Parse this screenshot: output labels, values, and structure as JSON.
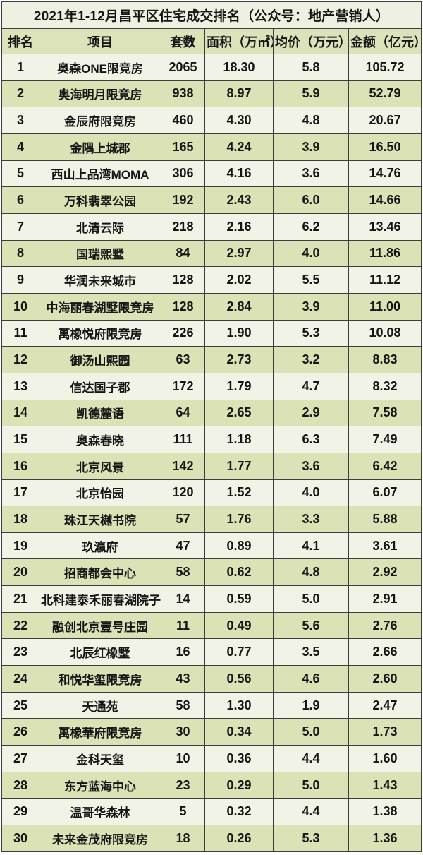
{
  "page": {
    "title": "2021年1-12月昌平区住宅成交排名（公众号：地产营销人）"
  },
  "colors": {
    "row_light": "#f0f3e6",
    "row_green": "#dae2b6",
    "header_bg": "#dce3ba",
    "title_bg": "#eef1e2",
    "border": "#3d3d3d",
    "text": "#151515",
    "page_bg": "#ffffff"
  },
  "table": {
    "headers": [
      "排名",
      "项目",
      "套数",
      "面积（万㎡）",
      "均价（万元）",
      "金额（亿元）"
    ],
    "rows": [
      [
        "1",
        "奥森ONE限竞房",
        "2065",
        "18.30",
        "5.8",
        "105.72"
      ],
      [
        "2",
        "奥海明月限竞房",
        "938",
        "8.97",
        "5.9",
        "52.79"
      ],
      [
        "3",
        "金辰府限竞房",
        "460",
        "4.30",
        "4.8",
        "20.67"
      ],
      [
        "4",
        "金隅上城郡",
        "165",
        "4.24",
        "3.9",
        "16.50"
      ],
      [
        "5",
        "西山上品湾MOMA",
        "306",
        "4.16",
        "3.6",
        "14.76"
      ],
      [
        "6",
        "万科翡翠公园",
        "192",
        "2.43",
        "6.0",
        "14.66"
      ],
      [
        "7",
        "北清云际",
        "218",
        "2.16",
        "6.2",
        "13.46"
      ],
      [
        "8",
        "国瑞熙墅",
        "84",
        "2.97",
        "4.0",
        "11.86"
      ],
      [
        "9",
        "华润未来城市",
        "128",
        "2.02",
        "5.5",
        "11.12"
      ],
      [
        "10",
        "中海丽春湖墅限竞房",
        "128",
        "2.84",
        "3.9",
        "11.00"
      ],
      [
        "11",
        "萬橡悦府限竞房",
        "226",
        "1.90",
        "5.3",
        "10.08"
      ],
      [
        "12",
        "御汤山熙园",
        "63",
        "2.73",
        "3.2",
        "8.83"
      ],
      [
        "13",
        "信达国子郡",
        "172",
        "1.79",
        "4.7",
        "8.32"
      ],
      [
        "14",
        "凯德麓语",
        "64",
        "2.65",
        "2.9",
        "7.58"
      ],
      [
        "15",
        "奥森春晓",
        "111",
        "1.18",
        "6.3",
        "7.49"
      ],
      [
        "16",
        "北京风景",
        "142",
        "1.77",
        "3.6",
        "6.42"
      ],
      [
        "17",
        "北京怡园",
        "120",
        "1.52",
        "4.0",
        "6.07"
      ],
      [
        "18",
        "珠江天樾书院",
        "57",
        "1.76",
        "3.3",
        "5.88"
      ],
      [
        "19",
        "玖瀛府",
        "47",
        "0.89",
        "4.1",
        "3.61"
      ],
      [
        "20",
        "招商都会中心",
        "58",
        "0.62",
        "4.8",
        "2.92"
      ],
      [
        "21",
        "北科建泰禾丽春湖院子",
        "14",
        "0.59",
        "5.0",
        "2.91"
      ],
      [
        "22",
        "融创北京壹号庄园",
        "11",
        "0.49",
        "5.6",
        "2.76"
      ],
      [
        "23",
        "北辰红橡墅",
        "16",
        "0.77",
        "3.5",
        "2.66"
      ],
      [
        "24",
        "和悦华玺限竞房",
        "43",
        "0.56",
        "4.6",
        "2.60"
      ],
      [
        "25",
        "天通苑",
        "58",
        "1.30",
        "1.9",
        "2.47"
      ],
      [
        "26",
        "萬橡華府限竞房",
        "30",
        "0.34",
        "5.0",
        "1.73"
      ],
      [
        "27",
        "金科天玺",
        "10",
        "0.36",
        "4.4",
        "1.60"
      ],
      [
        "28",
        "东方蓝海中心",
        "23",
        "0.29",
        "5.0",
        "1.43"
      ],
      [
        "29",
        "温哥华森林",
        "5",
        "0.32",
        "4.4",
        "1.38"
      ],
      [
        "30",
        "未来金茂府限竞房",
        "18",
        "0.26",
        "5.3",
        "1.36"
      ]
    ]
  },
  "chart_data": {
    "type": "table",
    "title": "2021年1-12月昌平区住宅成交排名（公众号：地产营销人）",
    "columns": [
      "排名",
      "项目",
      "套数",
      "面积（万㎡）",
      "均价（万元）",
      "金额（亿元）"
    ],
    "rows": [
      [
        1,
        "奥森ONE限竞房",
        2065,
        18.3,
        5.8,
        105.72
      ],
      [
        2,
        "奥海明月限竞房",
        938,
        8.97,
        5.9,
        52.79
      ],
      [
        3,
        "金辰府限竞房",
        460,
        4.3,
        4.8,
        20.67
      ],
      [
        4,
        "金隅上城郡",
        165,
        4.24,
        3.9,
        16.5
      ],
      [
        5,
        "西山上品湾MOMA",
        306,
        4.16,
        3.6,
        14.76
      ],
      [
        6,
        "万科翡翠公园",
        192,
        2.43,
        6.0,
        14.66
      ],
      [
        7,
        "北清云际",
        218,
        2.16,
        6.2,
        13.46
      ],
      [
        8,
        "国瑞熙墅",
        84,
        2.97,
        4.0,
        11.86
      ],
      [
        9,
        "华润未来城市",
        128,
        2.02,
        5.5,
        11.12
      ],
      [
        10,
        "中海丽春湖墅限竞房",
        128,
        2.84,
        3.9,
        11.0
      ],
      [
        11,
        "萬橡悦府限竞房",
        226,
        1.9,
        5.3,
        10.08
      ],
      [
        12,
        "御汤山熙园",
        63,
        2.73,
        3.2,
        8.83
      ],
      [
        13,
        "信达国子郡",
        172,
        1.79,
        4.7,
        8.32
      ],
      [
        14,
        "凯德麓语",
        64,
        2.65,
        2.9,
        7.58
      ],
      [
        15,
        "奥森春晓",
        111,
        1.18,
        6.3,
        7.49
      ],
      [
        16,
        "北京风景",
        142,
        1.77,
        3.6,
        6.42
      ],
      [
        17,
        "北京怡园",
        120,
        1.52,
        4.0,
        6.07
      ],
      [
        18,
        "珠江天樾书院",
        57,
        1.76,
        3.3,
        5.88
      ],
      [
        19,
        "玖瀛府",
        47,
        0.89,
        4.1,
        3.61
      ],
      [
        20,
        "招商都会中心",
        58,
        0.62,
        4.8,
        2.92
      ],
      [
        21,
        "北科建泰禾丽春湖院子",
        14,
        0.59,
        5.0,
        2.91
      ],
      [
        22,
        "融创北京壹号庄园",
        11,
        0.49,
        5.6,
        2.76
      ],
      [
        23,
        "北辰红橡墅",
        16,
        0.77,
        3.5,
        2.66
      ],
      [
        24,
        "和悦华玺限竞房",
        43,
        0.56,
        4.6,
        2.6
      ],
      [
        25,
        "天通苑",
        58,
        1.3,
        1.9,
        2.47
      ],
      [
        26,
        "萬橡華府限竞房",
        30,
        0.34,
        5.0,
        1.73
      ],
      [
        27,
        "金科天玺",
        10,
        0.36,
        4.4,
        1.6
      ],
      [
        28,
        "东方蓝海中心",
        23,
        0.29,
        5.0,
        1.43
      ],
      [
        29,
        "温哥华森林",
        5,
        0.32,
        4.4,
        1.38
      ],
      [
        30,
        "未来金茂府限竞房",
        18,
        0.26,
        5.3,
        1.36
      ]
    ]
  }
}
